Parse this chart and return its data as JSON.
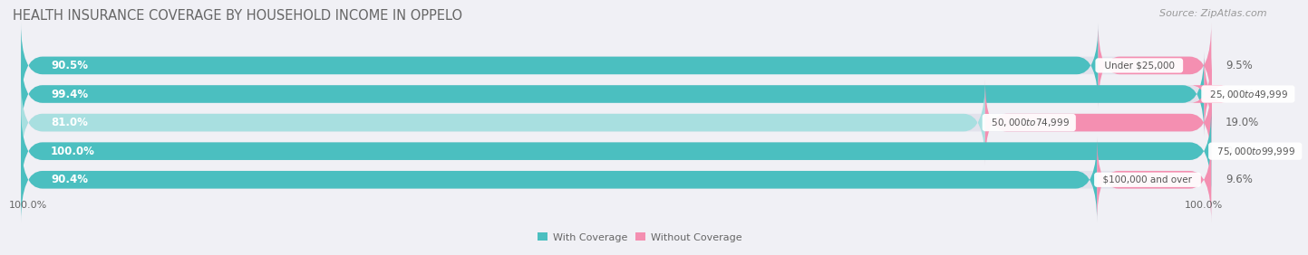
{
  "title": "HEALTH INSURANCE COVERAGE BY HOUSEHOLD INCOME IN OPPELO",
  "source": "Source: ZipAtlas.com",
  "categories": [
    "Under $25,000",
    "$25,000 to $49,999",
    "$50,000 to $74,999",
    "$75,000 to $99,999",
    "$100,000 and over"
  ],
  "with_coverage": [
    90.5,
    99.4,
    81.0,
    100.0,
    90.4
  ],
  "without_coverage": [
    9.5,
    0.65,
    19.0,
    0.0,
    9.6
  ],
  "color_coverage": "#4bbfc0",
  "color_no_coverage": "#f48fb1",
  "color_coverage_light": "#a8dfe0",
  "bg_color": "#f0f0f5",
  "bar_bg": "#e2e2ec",
  "title_color": "#666666",
  "source_color": "#999999",
  "label_color_white": "#ffffff",
  "label_color_dark": "#666666",
  "cat_label_color": "#555555",
  "title_fontsize": 10.5,
  "source_fontsize": 8,
  "bar_label_fontsize": 8.5,
  "cat_label_fontsize": 7.5,
  "legend_fontsize": 8,
  "axis_label_fontsize": 8,
  "bar_height": 0.62,
  "n_bars": 5
}
